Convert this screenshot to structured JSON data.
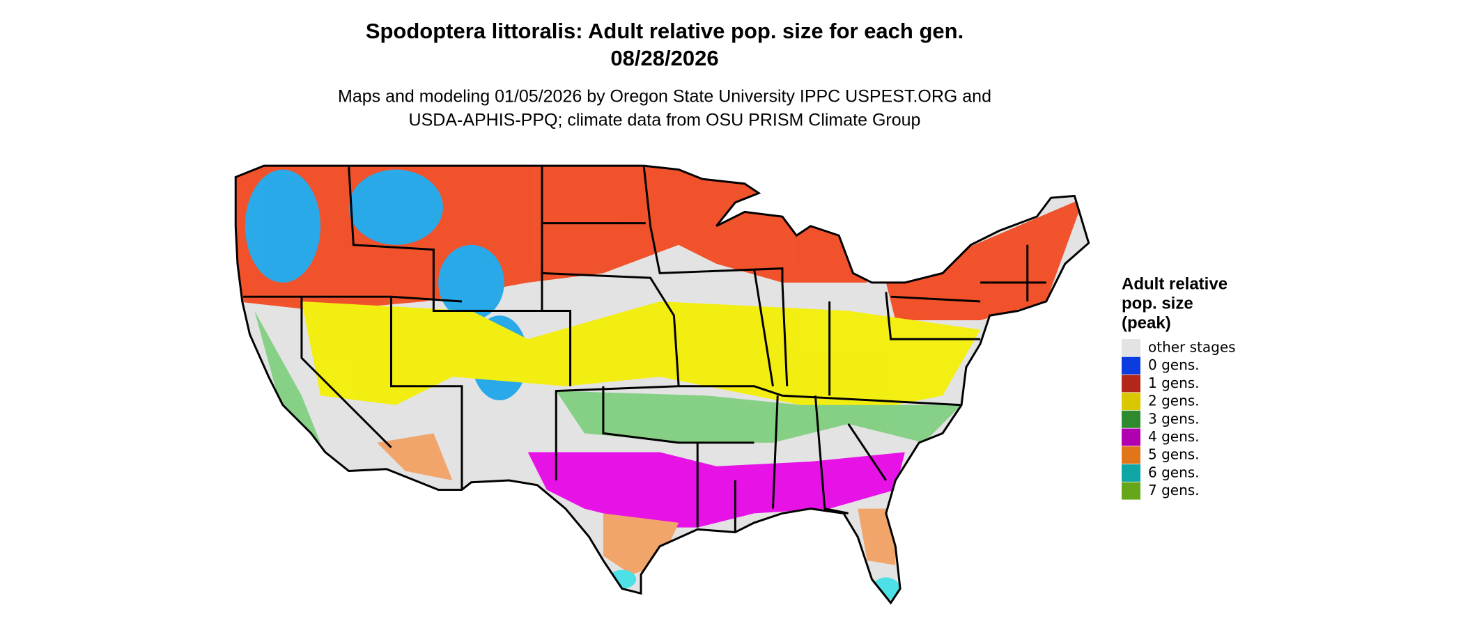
{
  "header": {
    "title": "Spodoptera littoralis: Adult relative pop. size for each gen.",
    "date": "08/28/2026",
    "subtitle": [
      "Maps and modeling 01/05/2026 by Oregon State University IPPC USPEST.ORG and",
      "USDA-APHIS-PPQ; climate data from OSU PRISM Climate Group"
    ]
  },
  "legend": {
    "title": [
      "Adult relative",
      "pop. size",
      "(peak)"
    ],
    "items": [
      {
        "label": "other stages",
        "color": "#e3e3e3"
      },
      {
        "label": "0 gens.",
        "color": "#0a3ce0"
      },
      {
        "label": "1 gens.",
        "color": "#b3261a"
      },
      {
        "label": "2 gens.",
        "color": "#d9c800"
      },
      {
        "label": "3 gens.",
        "color": "#2e8a2e"
      },
      {
        "label": "4 gens.",
        "color": "#b000b0"
      },
      {
        "label": "5 gens.",
        "color": "#e0751a"
      },
      {
        "label": "6 gens.",
        "color": "#10a6a6"
      },
      {
        "label": "7 gens.",
        "color": "#66a61a"
      }
    ]
  }
}
